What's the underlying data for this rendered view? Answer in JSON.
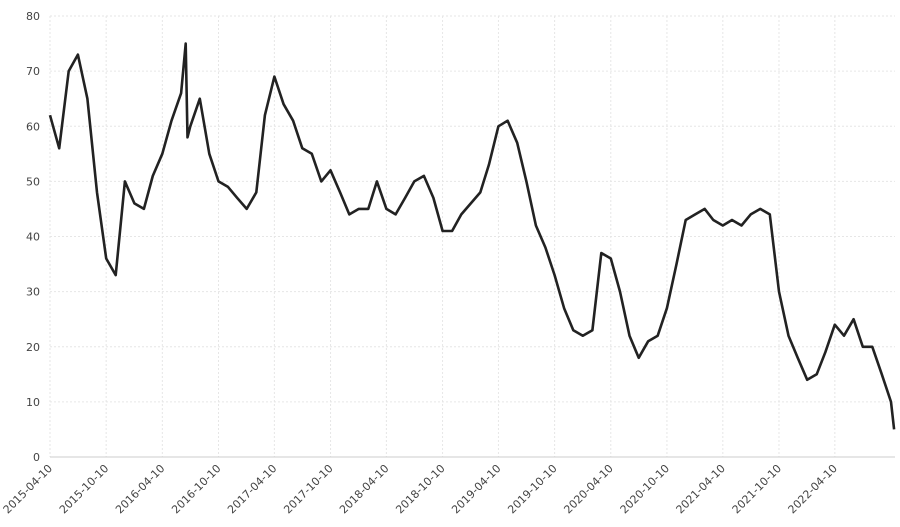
{
  "chart_data": {
    "type": "line",
    "color": "#222222",
    "grid": true,
    "x": [
      "2015-04-10",
      "2015-05-10",
      "2015-06-10",
      "2015-07-10",
      "2015-08-10",
      "2015-09-10",
      "2015-10-10",
      "2015-11-10",
      "2015-12-10",
      "2016-01-10",
      "2016-02-10",
      "2016-03-10",
      "2016-04-10",
      "2016-05-10",
      "2016-06-10",
      "2016-06-25",
      "2016-07-01",
      "2016-07-10",
      "2016-08-10",
      "2016-09-10",
      "2016-10-10",
      "2016-11-10",
      "2016-12-10",
      "2017-01-10",
      "2017-02-10",
      "2017-03-10",
      "2017-04-10",
      "2017-05-10",
      "2017-06-10",
      "2017-07-10",
      "2017-08-10",
      "2017-09-10",
      "2017-10-10",
      "2017-11-10",
      "2017-12-10",
      "2018-01-10",
      "2018-02-10",
      "2018-03-10",
      "2018-04-10",
      "2018-05-10",
      "2018-06-10",
      "2018-07-10",
      "2018-08-10",
      "2018-09-10",
      "2018-10-10",
      "2018-11-10",
      "2018-12-10",
      "2019-01-10",
      "2019-02-10",
      "2019-03-10",
      "2019-04-10",
      "2019-05-10",
      "2019-06-10",
      "2019-07-10",
      "2019-08-10",
      "2019-09-10",
      "2019-10-10",
      "2019-11-10",
      "2019-12-10",
      "2020-01-10",
      "2020-02-10",
      "2020-03-10",
      "2020-04-10",
      "2020-05-10",
      "2020-06-10",
      "2020-07-10",
      "2020-08-10",
      "2020-09-10",
      "2020-10-10",
      "2020-11-10",
      "2020-12-10",
      "2021-01-10",
      "2021-02-10",
      "2021-03-10",
      "2021-04-10",
      "2021-05-10",
      "2021-06-10",
      "2021-07-10",
      "2021-08-10",
      "2021-09-10",
      "2021-10-10",
      "2021-11-10",
      "2021-12-10",
      "2022-01-10",
      "2022-02-10",
      "2022-03-10",
      "2022-04-10",
      "2022-05-10",
      "2022-06-10",
      "2022-07-10",
      "2022-08-10",
      "2022-09-10",
      "2022-10-10",
      "2022-10-20"
    ],
    "values": [
      62,
      56,
      70,
      73,
      65,
      48,
      36,
      33,
      50,
      46,
      45,
      51,
      55,
      61,
      66,
      75,
      58,
      60,
      65,
      55,
      50,
      49,
      47,
      45,
      48,
      62,
      69,
      64,
      61,
      56,
      55,
      50,
      52,
      48,
      44,
      45,
      45,
      50,
      45,
      44,
      47,
      50,
      51,
      47,
      41,
      41,
      44,
      46,
      48,
      53,
      60,
      61,
      57,
      50,
      42,
      38,
      33,
      27,
      23,
      22,
      23,
      37,
      36,
      30,
      22,
      18,
      21,
      22,
      27,
      35,
      43,
      44,
      45,
      43,
      42,
      43,
      42,
      44,
      45,
      44,
      30,
      22,
      18,
      14,
      15,
      19,
      24,
      22,
      25,
      20,
      20,
      15,
      10,
      5
    ],
    "xlim": [
      "2015-04-10",
      "2022-10-23"
    ],
    "xticks": [
      "2015-04-10",
      "2015-10-10",
      "2016-04-10",
      "2016-10-10",
      "2017-04-10",
      "2017-10-10",
      "2018-04-10",
      "2018-10-10",
      "2019-04-10",
      "2019-10-10",
      "2020-04-10",
      "2020-10-10",
      "2021-04-10",
      "2021-10-10",
      "2022-04-10"
    ],
    "ylim": [
      0,
      80
    ],
    "yticks": [
      0,
      10,
      20,
      30,
      40,
      50,
      60,
      70,
      80
    ]
  }
}
